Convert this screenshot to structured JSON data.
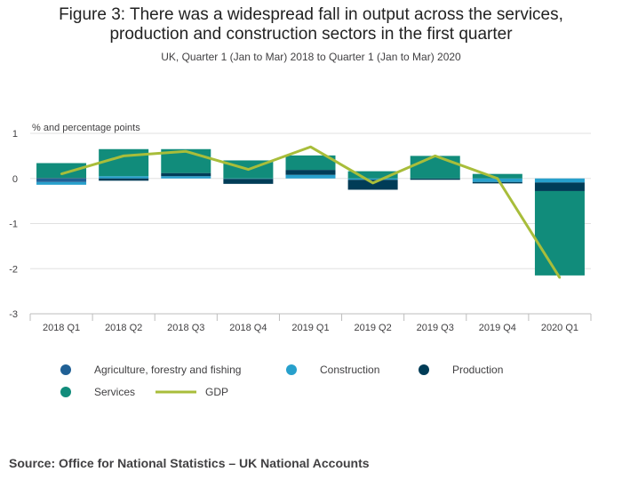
{
  "title_line1": "Figure 3: There was a widespread fall in output across the services,",
  "title_line2": "production and construction sectors in the first quarter",
  "subtitle": "UK, Quarter 1 (Jan to Mar) 2018 to Quarter 1 (Jan to Mar) 2020",
  "source": "Source: Office for National Statistics – UK National Accounts",
  "chart_data": {
    "type": "bar",
    "stacked": true,
    "ylabel": "% and percentage points",
    "ylim": [
      -3,
      1
    ],
    "yticks": [
      1,
      0,
      -1,
      -2,
      -3
    ],
    "grid": true,
    "legend_position": "bottom",
    "categories": [
      "2018 Q1",
      "2018 Q2",
      "2018 Q3",
      "2018 Q4",
      "2019 Q1",
      "2019 Q2",
      "2019 Q3",
      "2019 Q4",
      "2020 Q1"
    ],
    "series": [
      {
        "name": "Agriculture, forestry and fishing",
        "type": "bar",
        "color": "#206095",
        "values": [
          -0.08,
          0.0,
          0.0,
          0.0,
          0.0,
          0.0,
          0.0,
          0.0,
          0.0
        ]
      },
      {
        "name": "Construction",
        "type": "bar",
        "color": "#27a0cc",
        "values": [
          -0.06,
          0.05,
          0.05,
          -0.01,
          0.08,
          -0.03,
          0.0,
          -0.08,
          -0.09
        ]
      },
      {
        "name": "Production",
        "type": "bar",
        "color": "#003c57",
        "values": [
          0.01,
          -0.05,
          0.07,
          -0.11,
          0.11,
          -0.22,
          -0.03,
          -0.03,
          -0.19
        ]
      },
      {
        "name": "Services",
        "type": "bar",
        "color": "#118c7b",
        "values": [
          0.33,
          0.6,
          0.53,
          0.4,
          0.32,
          0.16,
          0.5,
          0.1,
          -1.87
        ]
      },
      {
        "name": "GDP",
        "type": "line",
        "color": "#a8bd3a",
        "values": [
          0.1,
          0.5,
          0.6,
          0.2,
          0.7,
          -0.1,
          0.5,
          0.0,
          -2.2
        ]
      }
    ]
  }
}
